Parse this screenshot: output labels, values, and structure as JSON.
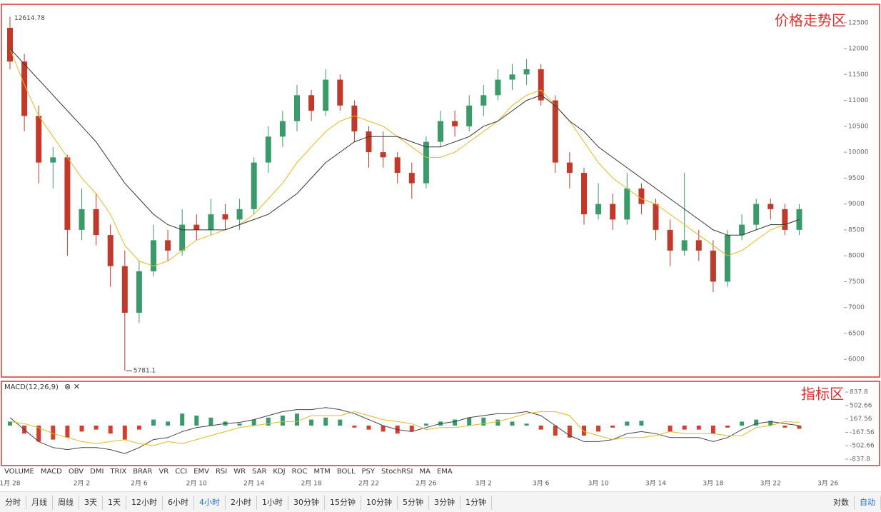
{
  "chart_data": [
    {
      "type": "candlestick",
      "annotation": "价格走势区",
      "categories": [
        "1月 28",
        null,
        null,
        null,
        null,
        "2月 2",
        null,
        null,
        null,
        "2月 6",
        null,
        null,
        null,
        "2月 10",
        null,
        null,
        null,
        "2月 14",
        null,
        null,
        null,
        "2月 18",
        null,
        null,
        null,
        "2月 22",
        null,
        null,
        null,
        "2月 26",
        null,
        null,
        null,
        "3月 2",
        null,
        null,
        null,
        "3月 6",
        null,
        null,
        null,
        "3月 10",
        null,
        null,
        null,
        "3月 14",
        null,
        null,
        null,
        "3月 18",
        null,
        null,
        null,
        "3月 22",
        null,
        null,
        null,
        "3月 26"
      ],
      "open": [
        12400,
        11750,
        10700,
        9800,
        9900,
        8500,
        8900,
        8400,
        7800,
        6900,
        7700,
        8300,
        8100,
        8600,
        8500,
        8800,
        8700,
        8900,
        9800,
        10300,
        10600,
        11100,
        10800,
        11400,
        10900,
        10400,
        10000,
        9900,
        9600,
        9400,
        10200,
        10600,
        10500,
        10900,
        11100,
        11400,
        11500,
        11600,
        11000,
        9800,
        9600,
        8800,
        9000,
        8700,
        9300,
        9000,
        8500,
        8100,
        8300,
        8100,
        7500,
        8400,
        8600,
        9000,
        8900,
        8500,
        null,
        null
      ],
      "high": [
        12614.78,
        11900,
        10900,
        10100,
        9950,
        9300,
        9200,
        8600,
        8100,
        7900,
        8600,
        8500,
        8900,
        8800,
        9100,
        9000,
        9100,
        9900,
        10500,
        10800,
        11300,
        11200,
        11600,
        11500,
        11000,
        10500,
        10400,
        10000,
        9800,
        10300,
        10800,
        10800,
        11100,
        11300,
        11600,
        11700,
        11800,
        11700,
        11100,
        10000,
        9700,
        9400,
        9200,
        9600,
        9400,
        9100,
        8700,
        9600,
        8500,
        8300,
        8500,
        8800,
        9100,
        9100,
        9000,
        9000,
        null,
        null
      ],
      "low": [
        11600,
        10400,
        9400,
        9300,
        8000,
        8300,
        8200,
        7400,
        5781.1,
        6700,
        7600,
        7900,
        8000,
        8300,
        8400,
        8500,
        8500,
        8800,
        9600,
        10100,
        10400,
        10600,
        10700,
        10800,
        10200,
        9700,
        9700,
        9400,
        9100,
        9300,
        10100,
        10300,
        10400,
        10700,
        11000,
        11200,
        11300,
        10900,
        9600,
        9300,
        8600,
        8700,
        8500,
        8600,
        8800,
        8300,
        7800,
        8000,
        7900,
        7300,
        7400,
        8300,
        8500,
        8700,
        8400,
        8400,
        null,
        null
      ],
      "close": [
        11750,
        10700,
        9800,
        9900,
        8500,
        8900,
        8400,
        7800,
        6900,
        7700,
        8300,
        8100,
        8600,
        8500,
        8800,
        8700,
        8900,
        9800,
        10300,
        10600,
        11100,
        10800,
        11400,
        10900,
        10400,
        10000,
        9900,
        9600,
        9400,
        10200,
        10600,
        10500,
        10900,
        11100,
        11400,
        11500,
        11600,
        11000,
        9800,
        9600,
        8800,
        9000,
        8700,
        9300,
        9000,
        8500,
        8100,
        8300,
        8100,
        7500,
        8400,
        8600,
        9000,
        8900,
        8500,
        8900,
        null,
        null
      ],
      "up_color": "#3a9a6a",
      "down_color": "#c0392b",
      "lines": [
        {
          "color": "#e8b820",
          "values": [
            12000,
            11300,
            10700,
            10300,
            9900,
            9500,
            9200,
            8800,
            8200,
            7900,
            7800,
            7900,
            8100,
            8300,
            8400,
            8500,
            8600,
            8800,
            9100,
            9400,
            9800,
            10100,
            10400,
            10600,
            10700,
            10600,
            10500,
            10300,
            10100,
            9900,
            9900,
            10000,
            10200,
            10400,
            10600,
            10900,
            11100,
            11200,
            10900,
            10600,
            10200,
            9800,
            9500,
            9300,
            9100,
            9000,
            8800,
            8600,
            8400,
            8200,
            8000,
            8100,
            8300,
            8500,
            8600,
            8700,
            null,
            null
          ]
        },
        {
          "color": "#333333",
          "values": [
            12000,
            11700,
            11400,
            11100,
            10800,
            10500,
            10200,
            9800,
            9400,
            9100,
            8800,
            8600,
            8500,
            8500,
            8500,
            8500,
            8600,
            8700,
            8800,
            9000,
            9200,
            9500,
            9800,
            10000,
            10200,
            10300,
            10300,
            10300,
            10200,
            10100,
            10100,
            10200,
            10300,
            10500,
            10600,
            10800,
            11000,
            11100,
            10900,
            10600,
            10400,
            10100,
            9900,
            9700,
            9500,
            9300,
            9100,
            8900,
            8700,
            8500,
            8400,
            8400,
            8500,
            8600,
            8600,
            8700,
            null,
            null
          ]
        }
      ],
      "ylim": [
        5700,
        12800
      ],
      "yticks": [
        6000,
        6500,
        7000,
        7500,
        8000,
        8500,
        9000,
        9500,
        10000,
        10500,
        11000,
        11500,
        12000,
        12500
      ]
    },
    {
      "type": "macd",
      "title": "MACD(12,26,9)",
      "annotation": "指标区",
      "histogram": [
        100,
        -200,
        -400,
        -350,
        -300,
        -150,
        -100,
        -200,
        -350,
        -100,
        150,
        100,
        300,
        250,
        200,
        100,
        50,
        150,
        200,
        250,
        300,
        150,
        200,
        150,
        -50,
        -100,
        -150,
        -200,
        -150,
        50,
        100,
        150,
        200,
        200,
        150,
        100,
        50,
        -100,
        -250,
        -300,
        -250,
        -150,
        -50,
        100,
        120,
        0,
        -150,
        -100,
        -100,
        -200,
        -50,
        100,
        150,
        120,
        -50,
        -80,
        null,
        null
      ],
      "dif": [
        200,
        -100,
        -400,
        -550,
        -600,
        -550,
        -550,
        -600,
        -700,
        -550,
        -350,
        -300,
        -150,
        -50,
        0,
        50,
        80,
        150,
        250,
        350,
        400,
        400,
        450,
        400,
        300,
        150,
        0,
        -100,
        -150,
        -50,
        50,
        100,
        200,
        250,
        300,
        300,
        350,
        250,
        0,
        -250,
        -400,
        -400,
        -350,
        -200,
        -150,
        -200,
        -300,
        -300,
        -300,
        -400,
        -300,
        -100,
        50,
        100,
        50,
        0,
        null,
        null
      ],
      "dea": [
        100,
        50,
        -50,
        -200,
        -300,
        -400,
        -450,
        -400,
        -350,
        -450,
        -500,
        -400,
        -450,
        -350,
        -250,
        -150,
        -50,
        0,
        50,
        100,
        100,
        250,
        250,
        250,
        350,
        250,
        150,
        100,
        50,
        -100,
        -50,
        -50,
        0,
        50,
        100,
        200,
        300,
        350,
        350,
        250,
        -150,
        -250,
        -350,
        -300,
        -300,
        -250,
        -150,
        -200,
        -200,
        -200,
        -250,
        -250,
        -50,
        0,
        100,
        80,
        null,
        null
      ],
      "dif_color": "#444444",
      "dea_color": "#e8b820",
      "up_color": "#3a9a6a",
      "down_color": "#d04030",
      "ylim": [
        -1000,
        1000
      ],
      "yticks": [
        837.8,
        502.66,
        167.56,
        -167.56,
        -502.66,
        -837.8
      ]
    }
  ],
  "indicator_tabs": [
    "VOLUME",
    "MACD",
    "OBV",
    "DMI",
    "TRIX",
    "BRAR",
    "VR",
    "CCI",
    "EMV",
    "RSI",
    "WR",
    "SAR",
    "KDJ",
    "ROC",
    "MTM",
    "BOLL",
    "PSY",
    "StochRSI",
    "MA",
    "EMA"
  ],
  "period_tabs": [
    "分时",
    "月线",
    "周线",
    "3天",
    "1天",
    "12小时",
    "6小时",
    "4小时",
    "2小时",
    "1小时",
    "30分钟",
    "15分钟",
    "10分钟",
    "5分钟",
    "3分钟",
    "1分钟"
  ],
  "period_selected": 7,
  "scale_buttons": [
    "对数",
    "自动"
  ],
  "scale_selected": 1
}
